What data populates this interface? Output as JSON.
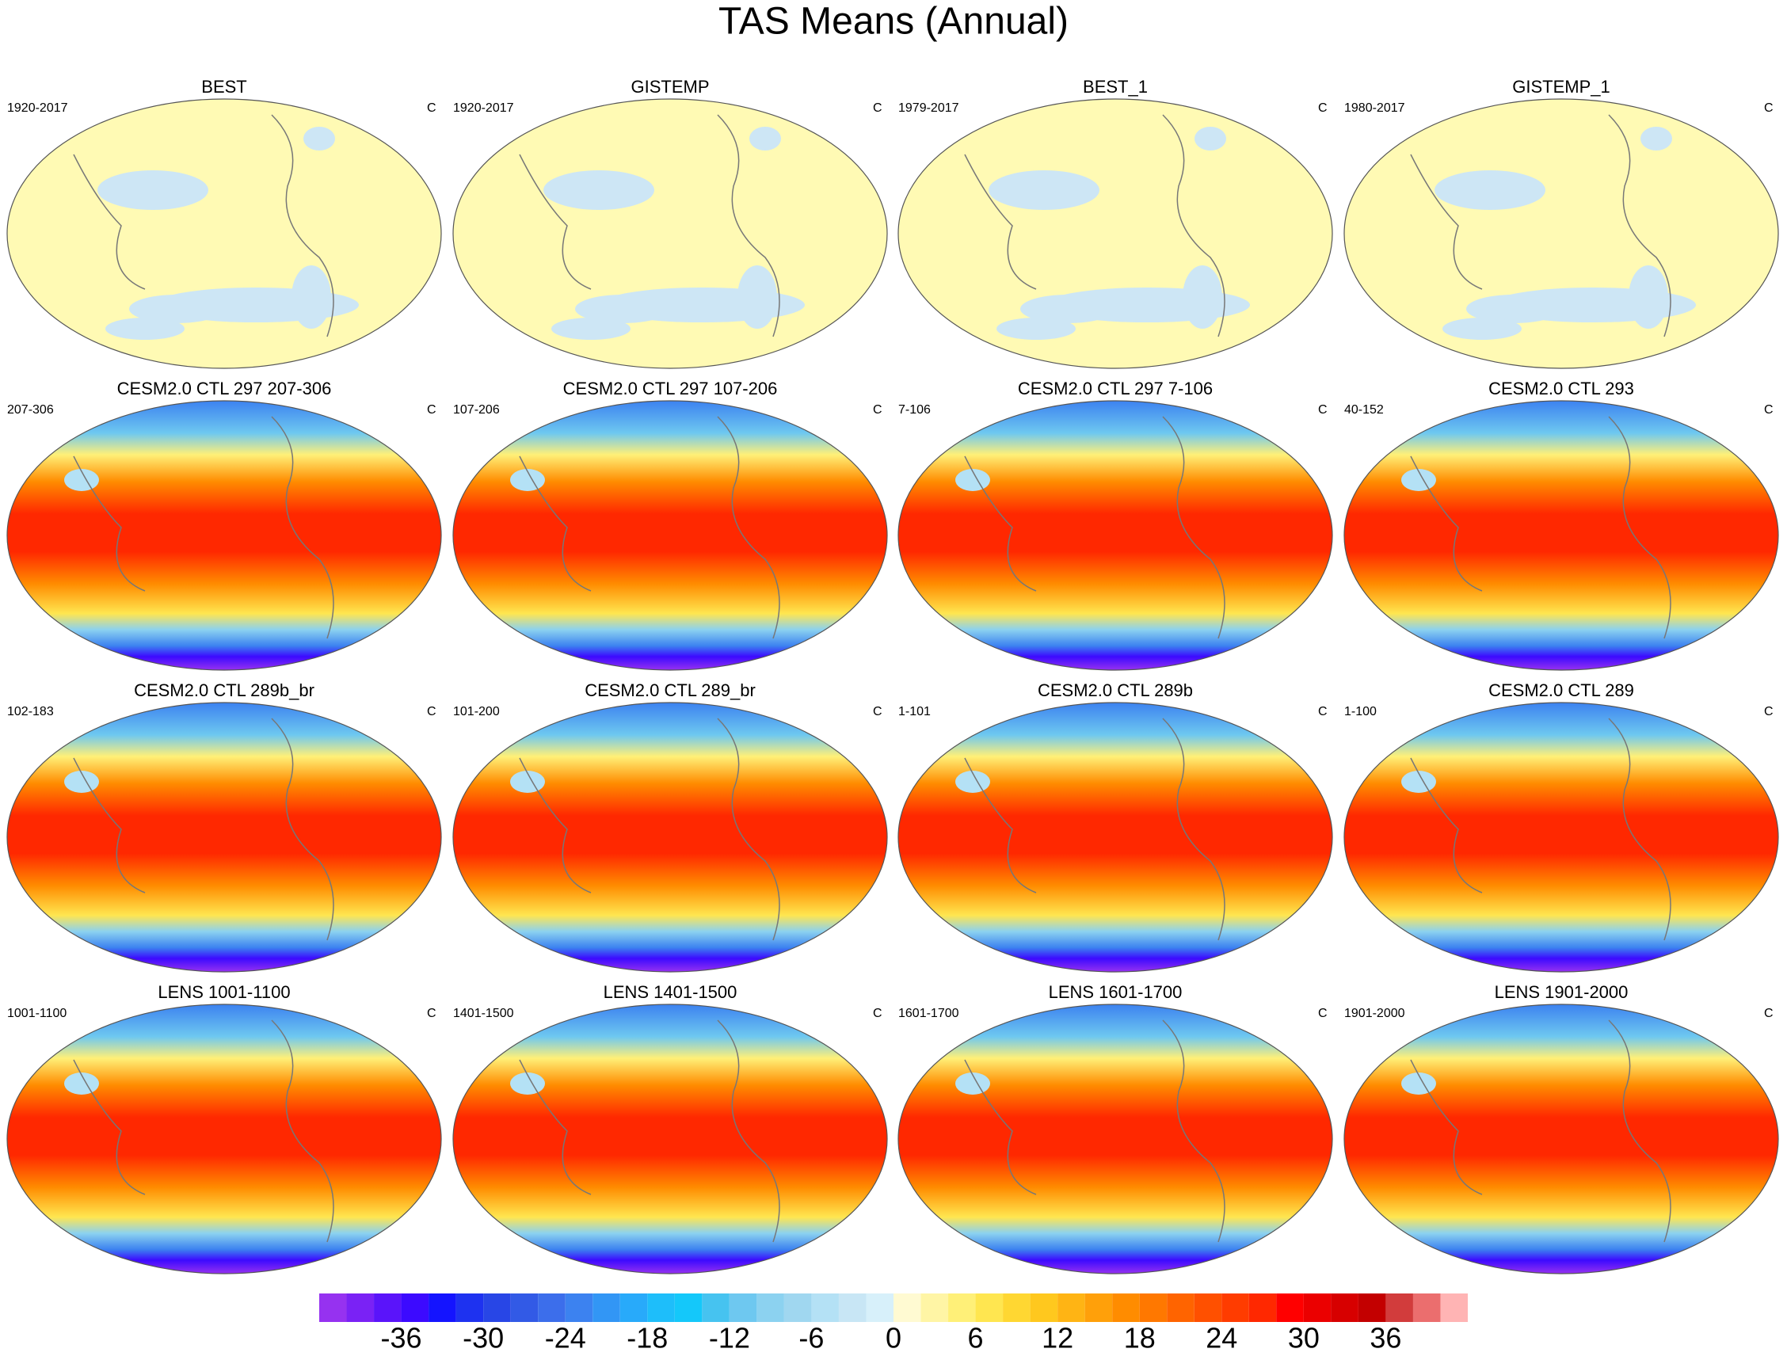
{
  "title": "TAS Means (Annual)",
  "panels": [
    {
      "title": "BEST",
      "left": "1920-2017",
      "right": "C"
    },
    {
      "title": "GISTEMP",
      "left": "1920-2017",
      "right": "C"
    },
    {
      "title": "BEST_1",
      "left": "1979-2017",
      "right": "C"
    },
    {
      "title": "GISTEMP_1",
      "left": "1980-2017",
      "right": "C"
    },
    {
      "title": "CESM2.0 CTL 297 207-306",
      "left": "207-306",
      "right": "C"
    },
    {
      "title": "CESM2.0 CTL 297 107-206",
      "left": "107-206",
      "right": "C"
    },
    {
      "title": "CESM2.0 CTL 297 7-106",
      "left": "7-106",
      "right": "C"
    },
    {
      "title": "CESM2.0 CTL 293",
      "left": "40-152",
      "right": "C"
    },
    {
      "title": "CESM2.0 CTL 289b_br",
      "left": "102-183",
      "right": "C"
    },
    {
      "title": "CESM2.0 CTL 289_br",
      "left": "101-200",
      "right": "C"
    },
    {
      "title": "CESM2.0 CTL 289b",
      "left": "1-101",
      "right": "C"
    },
    {
      "title": "CESM2.0 CTL 289",
      "left": "1-100",
      "right": "C"
    },
    {
      "title": "LENS 1001-1100",
      "left": "1001-1100",
      "right": "C"
    },
    {
      "title": "LENS 1401-1500",
      "left": "1401-1500",
      "right": "C"
    },
    {
      "title": "LENS 1601-1700",
      "left": "1601-1700",
      "right": "C"
    },
    {
      "title": "LENS 1901-2000",
      "left": "1901-2000",
      "right": "C"
    }
  ],
  "colorbar": {
    "lim": [
      -42,
      42
    ],
    "levels": [
      -40,
      -38,
      -36,
      -34,
      -32,
      -30,
      -28,
      -26,
      -24,
      -22,
      -20,
      -18,
      -16,
      -14,
      -12,
      -10,
      -8,
      -6,
      -4,
      -2,
      0,
      2,
      4,
      6,
      8,
      10,
      12,
      14,
      16,
      18,
      20,
      22,
      24,
      26,
      28,
      30,
      32,
      34,
      36,
      38,
      40
    ],
    "colors": [
      "#9632f0",
      "#7a22f5",
      "#5a14fa",
      "#3c0aff",
      "#1414ff",
      "#1e32f0",
      "#2846e6",
      "#325ae6",
      "#3c6eeb",
      "#3c82f0",
      "#3296f5",
      "#28aafa",
      "#1ebefa",
      "#14c8fa",
      "#46c3f0",
      "#6ec8f0",
      "#8cd2f0",
      "#a0d7f0",
      "#b4e1f5",
      "#c8e6f5",
      "#d7f0fa",
      "#fffad2",
      "#fff5a5",
      "#fff078",
      "#ffe650",
      "#ffd732",
      "#ffc81e",
      "#ffb414",
      "#ffa00a",
      "#ff8c00",
      "#ff7800",
      "#ff6400",
      "#ff5000",
      "#ff3c00",
      "#ff2800",
      "#ff0000",
      "#eb0000",
      "#d70000",
      "#c30000",
      "#d23c3c",
      "#eb6e6e",
      "#ffb4b4"
    ],
    "ticks": [
      -36,
      -30,
      -24,
      -18,
      -12,
      -6,
      0,
      6,
      12,
      18,
      24,
      30,
      36
    ]
  }
}
